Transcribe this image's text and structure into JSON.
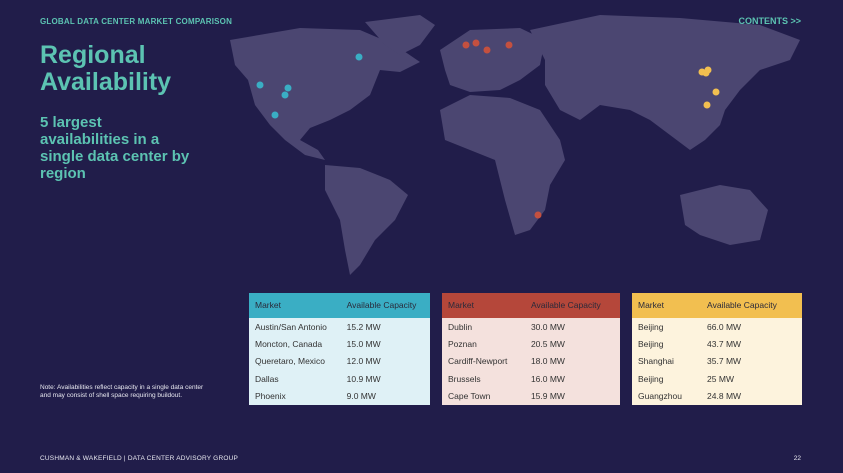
{
  "header": {
    "section": "GLOBAL DATA CENTER MARKET COMPARISON",
    "contents_link": "CONTENTS >>"
  },
  "title": "Regional Availability",
  "subtitle": "5 largest availabilities in a single data center by region",
  "tables": [
    {
      "columns": [
        "Market",
        "Available Capacity"
      ],
      "rows": [
        [
          "Austin/San Antonio",
          "15.2 MW"
        ],
        [
          "Moncton, Canada",
          "15.0 MW"
        ],
        [
          "Queretaro, Mexico",
          "12.0 MW"
        ],
        [
          "Dallas",
          "10.9 MW"
        ],
        [
          "Phoenix",
          "9.0 MW"
        ]
      ]
    },
    {
      "columns": [
        "Market",
        "Available Capacity"
      ],
      "rows": [
        [
          "Dublin",
          "30.0 MW"
        ],
        [
          "Poznan",
          "20.5 MW"
        ],
        [
          "Cardiff-Newport",
          "18.0 MW"
        ],
        [
          "Brussels",
          "16.0 MW"
        ],
        [
          "Cape Town",
          "15.9 MW"
        ]
      ]
    },
    {
      "columns": [
        "Market",
        "Available Capacity"
      ],
      "rows": [
        [
          "Beijing",
          "66.0 MW"
        ],
        [
          "Beijing",
          "43.7 MW"
        ],
        [
          "Shanghai",
          "35.7 MW"
        ],
        [
          "Beijing",
          "25 MW"
        ],
        [
          "Guangzhou",
          "24.8 MW"
        ]
      ]
    }
  ],
  "note": "Note: Availabilities reflect capacity in a single data center and may consist of shell space requiring buildout.",
  "footer": {
    "text": "CUSHMAN & WAKEFIELD | DATA CENTER ADVISORY GROUP",
    "page_number": "22"
  }
}
